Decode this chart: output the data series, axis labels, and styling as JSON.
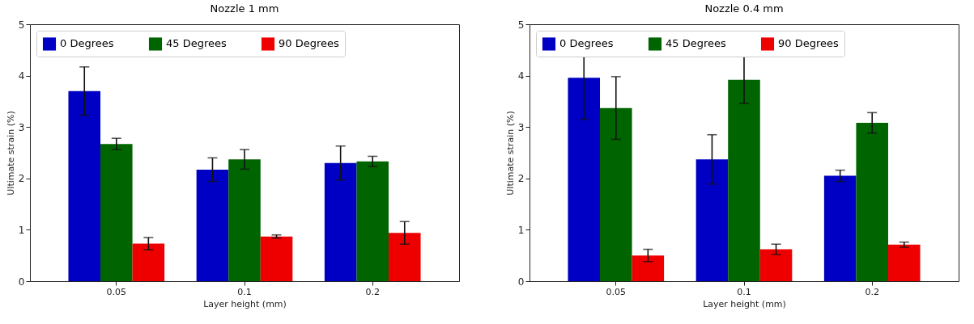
{
  "chart_data": [
    {
      "type": "bar",
      "title": "Nozzle 1 mm",
      "xlabel": "Layer height (mm)",
      "ylabel": "Ultimate strain (%)",
      "categories": [
        "0.05",
        "0.1",
        "0.2"
      ],
      "ylim": [
        0,
        5
      ],
      "yticks": [
        0,
        1,
        2,
        3,
        4,
        5
      ],
      "legend": "top",
      "grid": false,
      "series": [
        {
          "name": "0 Degrees",
          "color": "#0000c4",
          "values": [
            3.7,
            2.17,
            2.3
          ],
          "errors": [
            0.47,
            0.23,
            0.33
          ]
        },
        {
          "name": "45 Degrees",
          "color": "#006400",
          "values": [
            2.67,
            2.37,
            2.33
          ],
          "errors": [
            0.11,
            0.19,
            0.1
          ]
        },
        {
          "name": "90 Degrees",
          "color": "#ee0000",
          "values": [
            0.73,
            0.87,
            0.94
          ],
          "errors": [
            0.12,
            0.03,
            0.22
          ]
        }
      ]
    },
    {
      "type": "bar",
      "title": "Nozzle 0.4 mm",
      "xlabel": "Layer height (mm)",
      "ylabel": "Ultimate strain (%)",
      "categories": [
        "0.05",
        "0.1",
        "0.2"
      ],
      "ylim": [
        0,
        5
      ],
      "yticks": [
        0,
        1,
        2,
        3,
        4,
        5
      ],
      "legend": "top",
      "grid": false,
      "series": [
        {
          "name": "0 Degrees",
          "color": "#0000c4",
          "values": [
            3.96,
            2.37,
            2.05
          ],
          "errors": [
            0.81,
            0.48,
            0.11
          ]
        },
        {
          "name": "45 Degrees",
          "color": "#006400",
          "values": [
            3.37,
            3.92,
            3.08
          ],
          "errors": [
            0.61,
            0.46,
            0.2
          ]
        },
        {
          "name": "90 Degrees",
          "color": "#ee0000",
          "values": [
            0.5,
            0.62,
            0.71
          ],
          "errors": [
            0.12,
            0.1,
            0.05
          ]
        }
      ]
    }
  ]
}
